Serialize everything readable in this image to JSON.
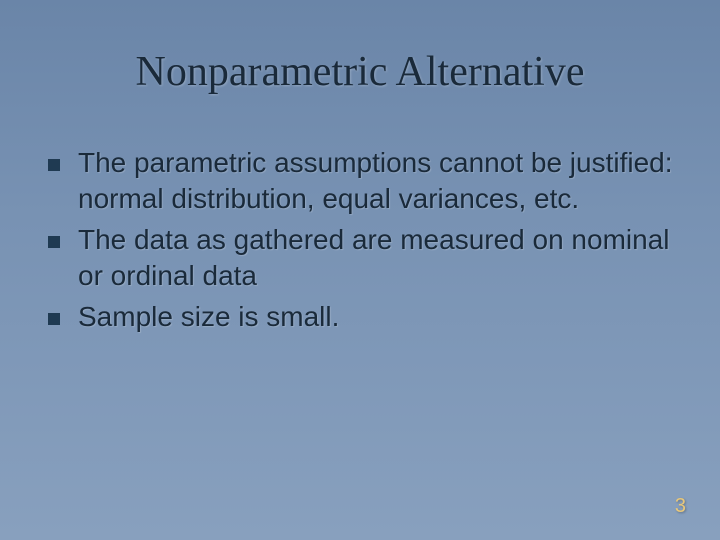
{
  "slide": {
    "title": "Nonparametric Alternative",
    "bullets": [
      "The parametric assumptions cannot be justified: normal distribution, equal variances, etc.",
      "The data as gathered are measured on nominal or ordinal data",
      "Sample size is small."
    ],
    "page_number": "3",
    "colors": {
      "background_top": "#6a85a8",
      "background_bottom": "#88a0be",
      "title_text": "#1a2a3a",
      "body_text": "#1a2a3a",
      "bullet_square": "#1f3a52",
      "page_number": "#e8c77a"
    },
    "typography": {
      "title_font": "Georgia serif",
      "title_size_pt": 32,
      "body_font": "Verdana sans-serif",
      "body_size_pt": 21,
      "pagenum_size_pt": 15
    }
  }
}
